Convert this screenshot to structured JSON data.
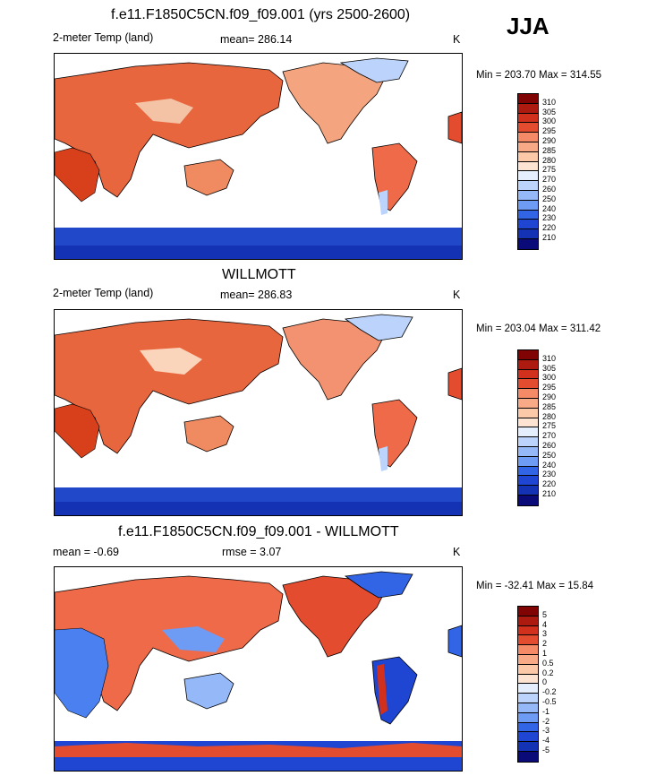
{
  "season": "JJA",
  "colors": {
    "abs_scale": [
      "#0a0a78",
      "#1432b4",
      "#1e46d2",
      "#3264e6",
      "#4a80f0",
      "#6e9cf5",
      "#94b8f8",
      "#bcd4fb",
      "#e4eefd",
      "#fde4d2",
      "#fbc8a8",
      "#f8aa86",
      "#f48a66",
      "#ee6a48",
      "#e44c30",
      "#d0301c",
      "#ac1a10",
      "#800404"
    ],
    "diff_scale": [
      "#0a0a78",
      "#1432b4",
      "#1e46d2",
      "#3264e6",
      "#4a80f0",
      "#6e9cf5",
      "#94b8f8",
      "#bcd4fb",
      "#e4eefd",
      "#fde4d2",
      "#fbc8a8",
      "#f8aa86",
      "#f48a66",
      "#ee6a48",
      "#e44c30",
      "#d0301c",
      "#ac1a10",
      "#800404"
    ]
  },
  "panels": [
    {
      "title": "f.e11.F1850C5CN.f09_f09.001 (yrs 2500-2600)",
      "left": "2-meter Temp (land)",
      "center": "mean= 286.14",
      "unit": "K",
      "minmax": "Min = 203.70 Max = 314.55",
      "kind": "abs",
      "ticks": [
        "310",
        "305",
        "300",
        "295",
        "290",
        "285",
        "280",
        "275",
        "270",
        "260",
        "250",
        "240",
        "230",
        "220",
        "210"
      ]
    },
    {
      "title": "WILLMOTT",
      "left": "2-meter Temp (land)",
      "center": "mean= 286.83",
      "unit": "K",
      "minmax": "Min = 203.04 Max = 311.42",
      "kind": "abs",
      "ticks": [
        "310",
        "305",
        "300",
        "295",
        "290",
        "285",
        "280",
        "275",
        "270",
        "260",
        "250",
        "240",
        "230",
        "220",
        "210"
      ]
    },
    {
      "title": "f.e11.F1850C5CN.f09_f09.001 - WILLMOTT",
      "left": "mean =  -0.69",
      "center": "rmse =   3.07",
      "unit": "K",
      "minmax": "Min = -32.41 Max =  15.84",
      "kind": "diff",
      "ticks": [
        "5",
        "4",
        "3",
        "2",
        "1",
        "0.5",
        "0.2",
        "0",
        "-0.2",
        "-0.5",
        "-1",
        "-2",
        "-3",
        "-4",
        "-5"
      ]
    }
  ]
}
